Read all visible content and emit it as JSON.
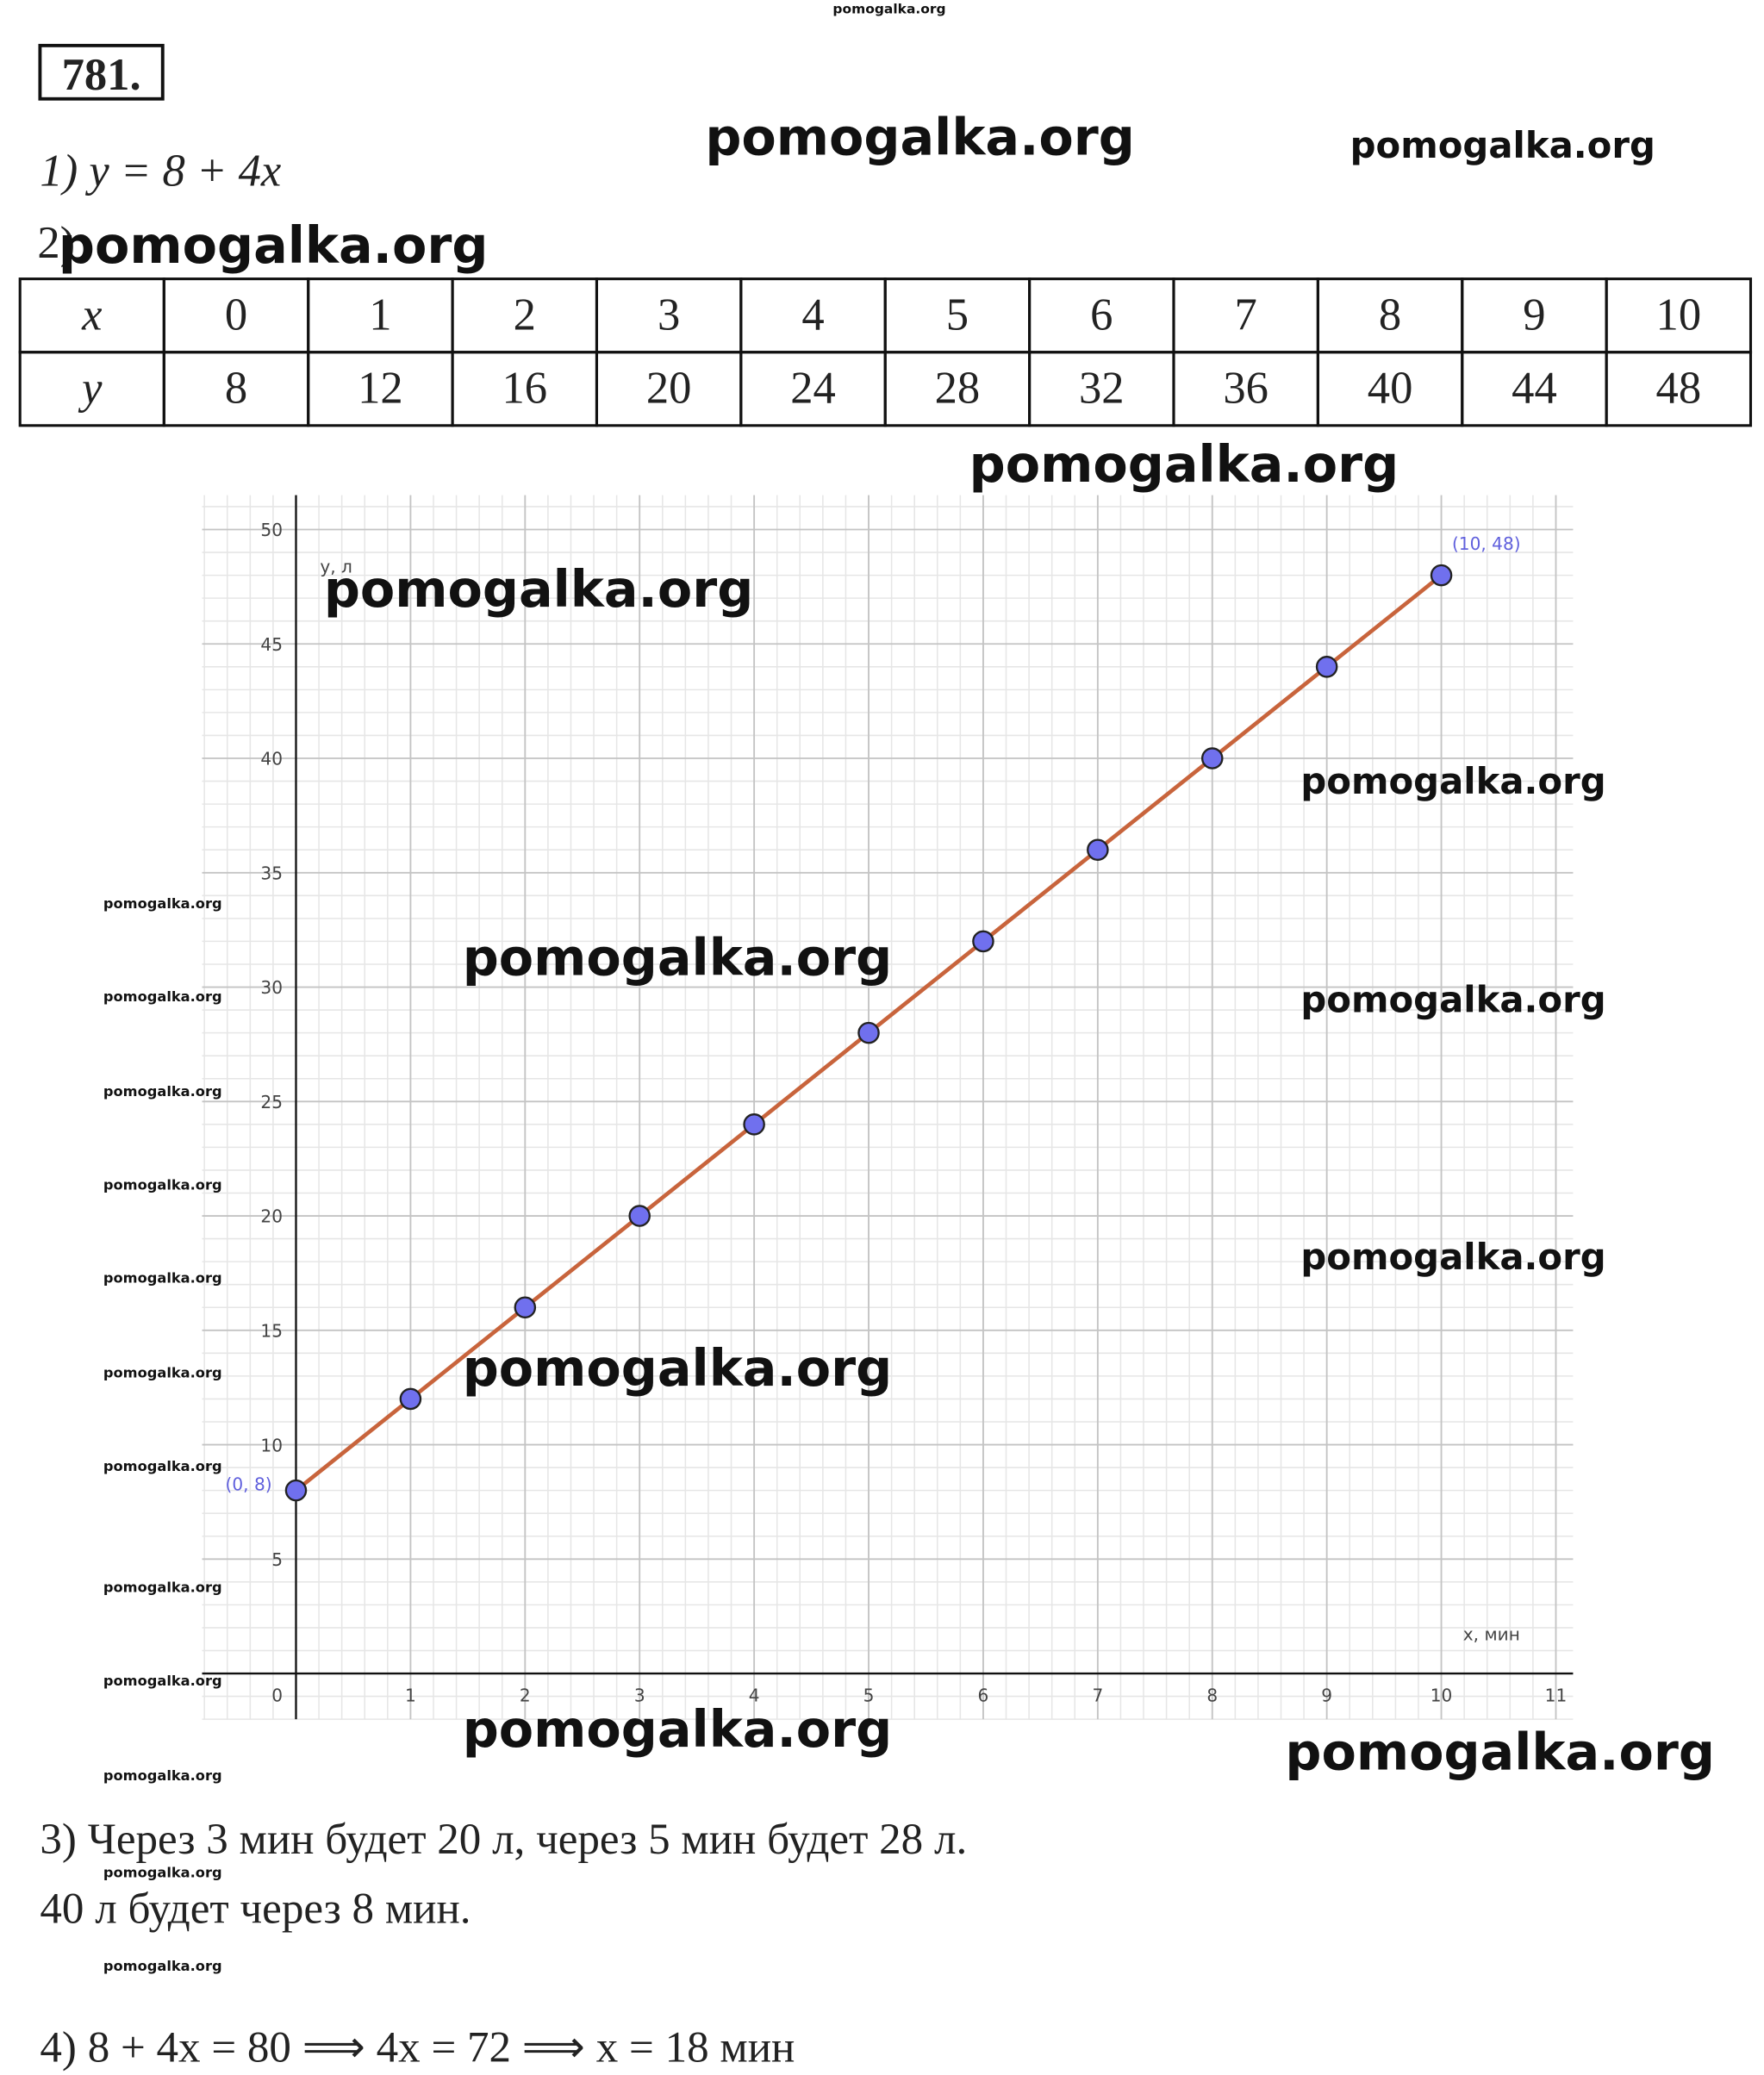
{
  "problem_number": "781.",
  "step1": "1) y = 8 + 4x",
  "step2_label": "2)",
  "table": {
    "rows": [
      [
        "x",
        "0",
        "1",
        "2",
        "3",
        "4",
        "5",
        "6",
        "7",
        "8",
        "9",
        "10"
      ],
      [
        "y",
        "8",
        "12",
        "16",
        "20",
        "24",
        "28",
        "32",
        "36",
        "40",
        "44",
        "48"
      ]
    ]
  },
  "chart_data": {
    "type": "line",
    "x_label": "x, мин",
    "y_label": "y, л",
    "x": [
      0,
      1,
      2,
      3,
      4,
      5,
      6,
      7,
      8,
      9,
      10
    ],
    "series": [
      {
        "values": [
          8,
          12,
          16,
          20,
          24,
          28,
          32,
          36,
          40,
          44,
          48
        ],
        "color": "#c8643c",
        "marker_color": "#7070ee"
      }
    ],
    "annotations": [
      "(0, 8)",
      "(10, 48)"
    ],
    "xlim": [
      -0.82,
      11.15
    ],
    "ylim": [
      -2,
      51.5
    ],
    "xticks": [
      0,
      1,
      2,
      3,
      4,
      5,
      6,
      7,
      8,
      9,
      10,
      11
    ],
    "yticks": [
      0,
      5,
      10,
      15,
      20,
      25,
      30,
      35,
      40,
      45,
      50
    ],
    "grid": true
  },
  "step3": [
    "3) Через 3 мин будет 20 л, через 5 мин будет 28 л.",
    "40 л будет через 8 мин."
  ],
  "step4": "4) 8 + 4x = 80  ⟹  4x = 72  ⟹  x = 18 мин",
  "watermark": "pomogalka.org"
}
